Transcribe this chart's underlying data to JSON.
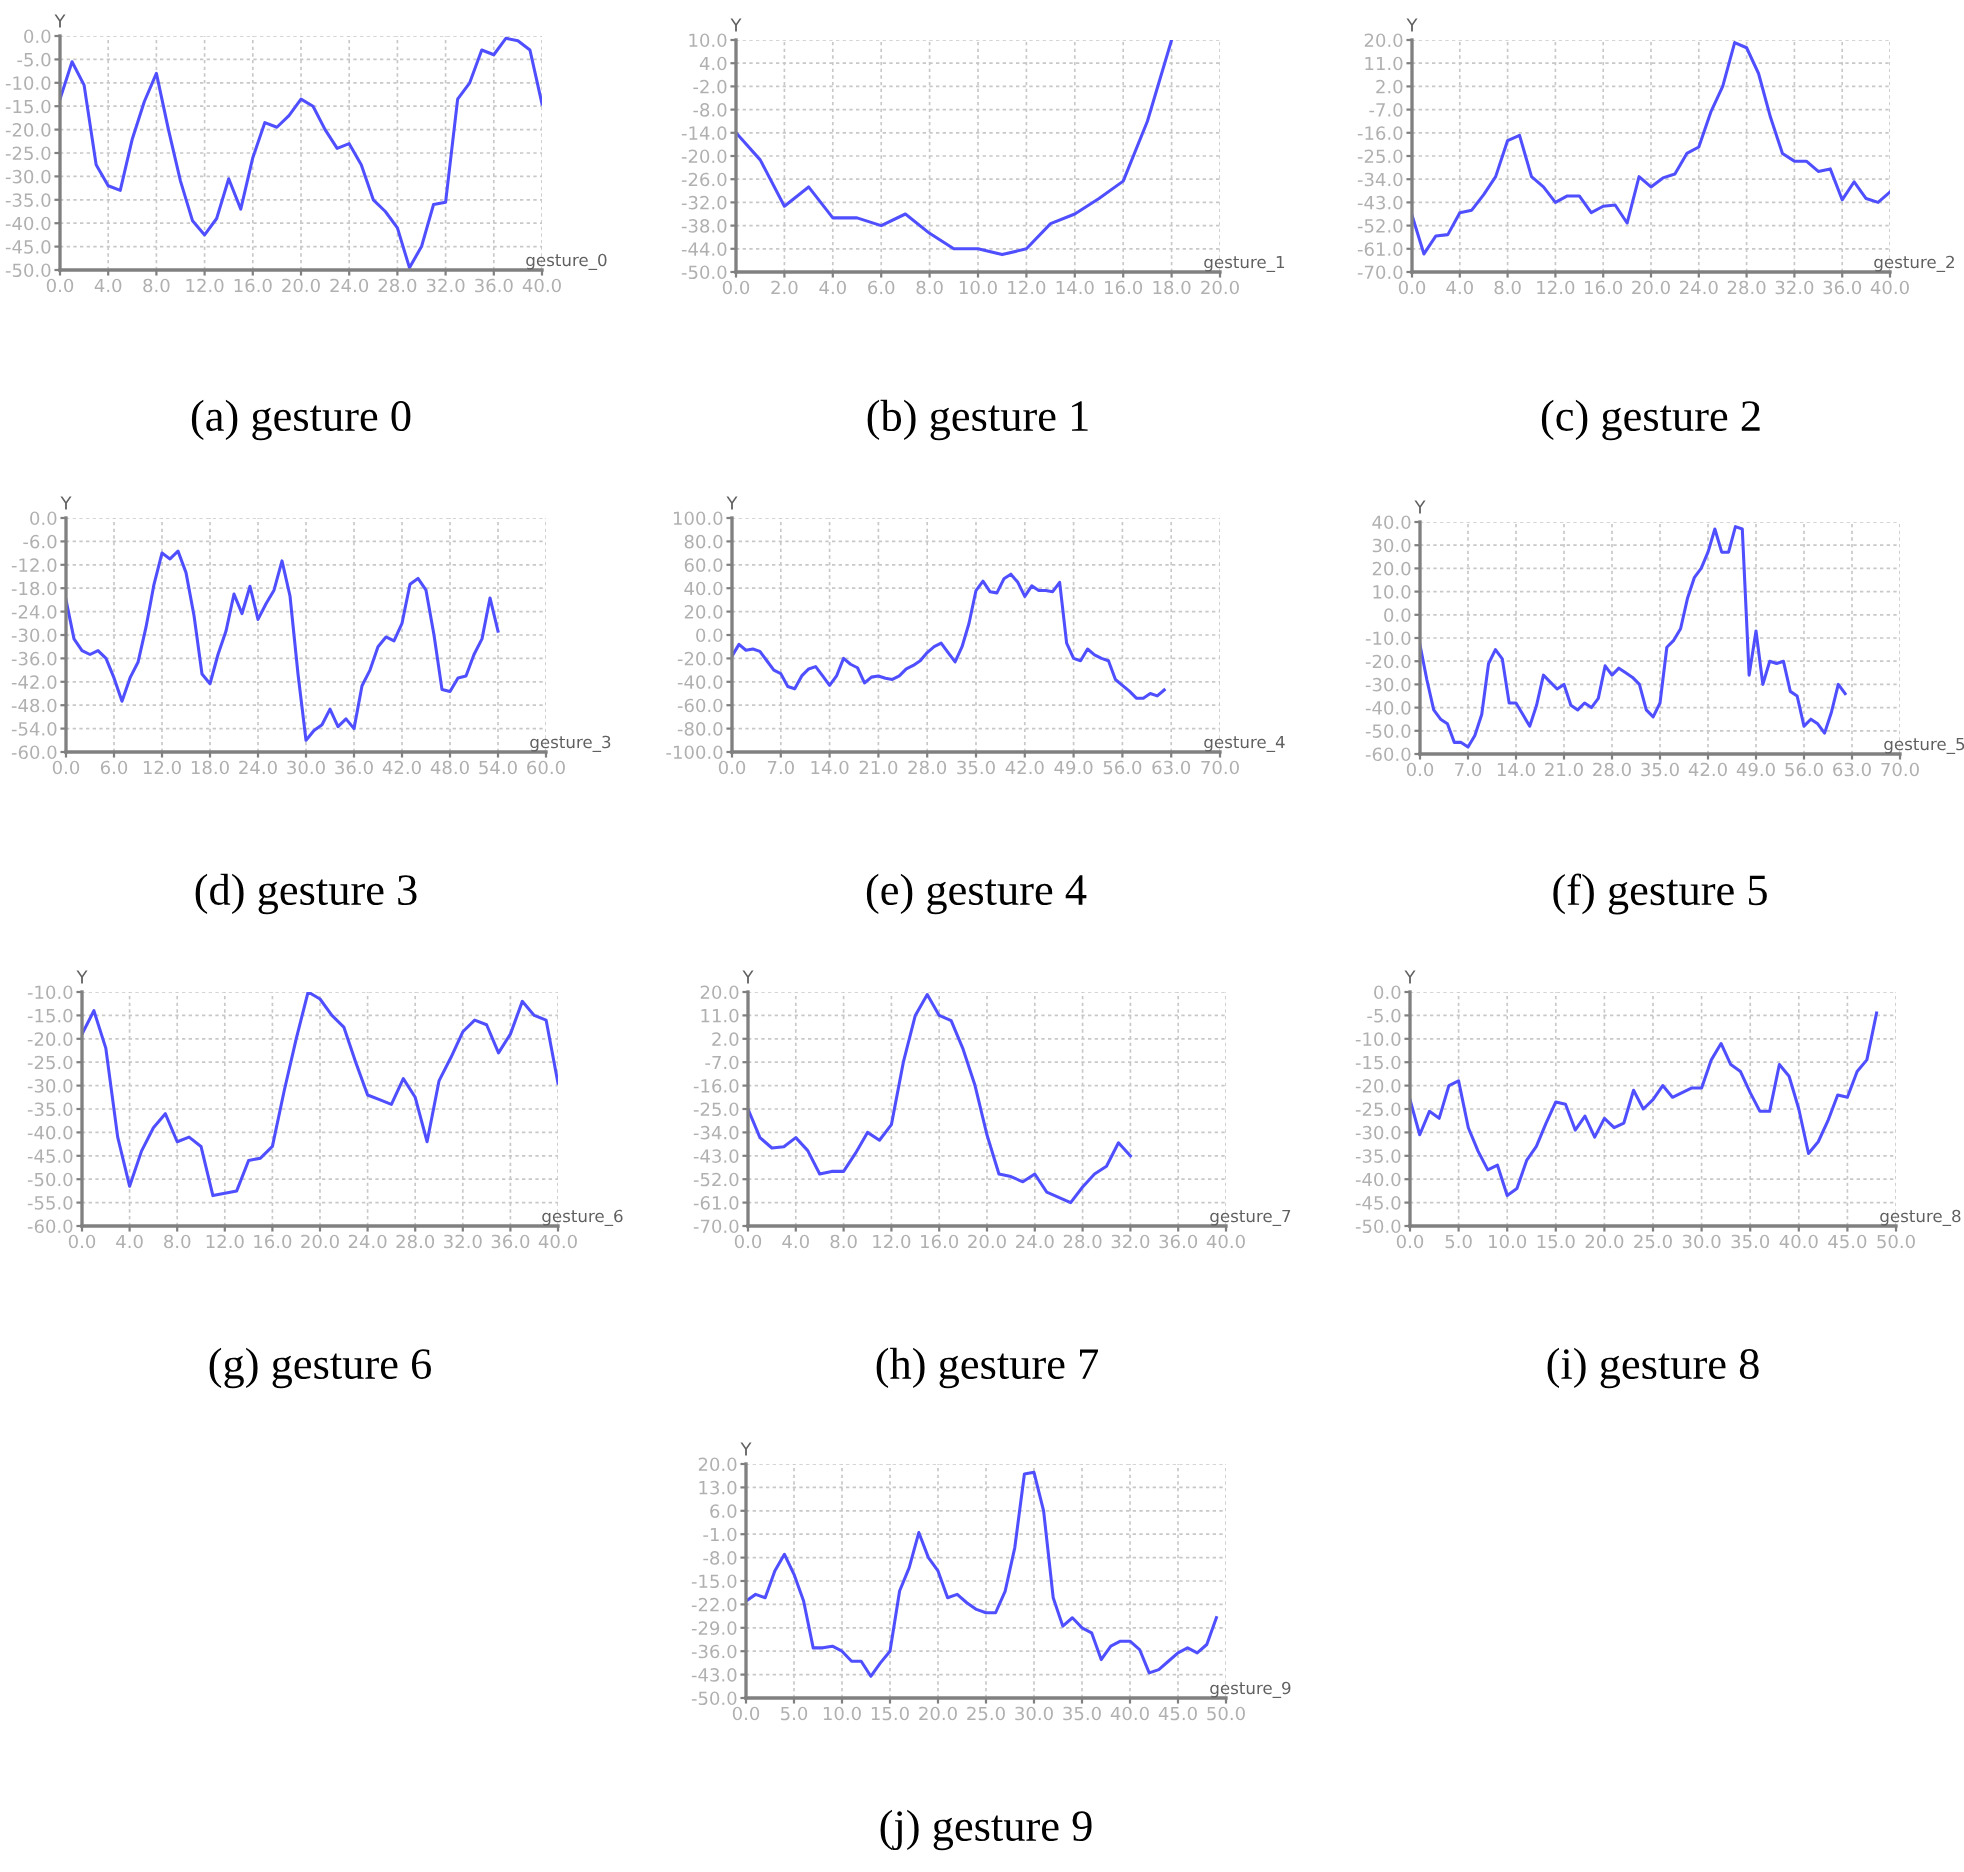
{
  "chart_data": [
    {
      "type": "line",
      "title": "(a) gesture 0",
      "xlabel": "gesture_0",
      "ylabel": "Y",
      "grid": true,
      "xlim": [
        0,
        40
      ],
      "ylim": [
        -50,
        0
      ],
      "xticks": [
        {
          "value": 0,
          "label": "0.0"
        },
        {
          "value": 4,
          "label": "4.0"
        },
        {
          "value": 8,
          "label": "8.0"
        },
        {
          "value": 12,
          "label": "12.0"
        },
        {
          "value": 16,
          "label": "16.0"
        },
        {
          "value": 20,
          "label": "20.0"
        },
        {
          "value": 24,
          "label": "24.0"
        },
        {
          "value": 28,
          "label": "28.0"
        },
        {
          "value": 32,
          "label": "32.0"
        },
        {
          "value": 36,
          "label": "36.0"
        },
        {
          "value": 40,
          "label": "40.0"
        }
      ],
      "yticks": [
        {
          "value": -50,
          "label": "-50.0"
        },
        {
          "value": -45,
          "label": "-45.0"
        },
        {
          "value": -40,
          "label": "-40.0"
        },
        {
          "value": -35,
          "label": "-35.0"
        },
        {
          "value": -30,
          "label": "-30.0"
        },
        {
          "value": -25,
          "label": "-25.0"
        },
        {
          "value": -20,
          "label": "-20.0"
        },
        {
          "value": -15,
          "label": "-15.0"
        },
        {
          "value": -10,
          "label": "-10.0"
        },
        {
          "value": -5,
          "label": "-5.0"
        },
        {
          "value": 0,
          "label": "0.0"
        }
      ],
      "series": [
        {
          "color": "#4f4fff",
          "x": [
            0,
            1,
            2,
            3,
            4,
            5,
            6,
            7,
            8,
            9,
            10,
            11,
            12,
            13,
            14,
            15,
            16,
            17,
            18,
            19,
            20,
            21,
            22,
            23,
            24,
            25,
            26,
            27,
            28,
            29,
            30,
            31,
            32,
            33,
            34,
            35,
            36,
            37,
            38,
            39,
            40
          ],
          "values": [
            -13.5,
            -5.5,
            -10.5,
            -27.5,
            -32,
            -33,
            -22,
            -14,
            -8,
            -20,
            -31,
            -39.5,
            -42.5,
            -39,
            -30.5,
            -37,
            -26,
            -18.5,
            -19.5,
            -17,
            -13.5,
            -15,
            -20,
            -24,
            -23,
            -27.5,
            -35,
            -37.5,
            -41,
            -49.5,
            -45,
            -36,
            -35.5,
            -13.5,
            -10,
            -3,
            -4,
            -0.5,
            -1,
            -3,
            -14.5
          ]
        }
      ]
    },
    {
      "type": "line",
      "title": "(b) gesture 1",
      "xlabel": "gesture_1",
      "ylabel": "Y",
      "grid": true,
      "xlim": [
        0,
        20
      ],
      "ylim": [
        -50,
        10
      ],
      "xticks": [
        {
          "value": 0,
          "label": "0.0"
        },
        {
          "value": 2,
          "label": "2.0"
        },
        {
          "value": 4,
          "label": "4.0"
        },
        {
          "value": 6,
          "label": "6.0"
        },
        {
          "value": 8,
          "label": "8.0"
        },
        {
          "value": 10,
          "label": "10.0"
        },
        {
          "value": 12,
          "label": "12.0"
        },
        {
          "value": 14,
          "label": "14.0"
        },
        {
          "value": 16,
          "label": "16.0"
        },
        {
          "value": 18,
          "label": "18.0"
        },
        {
          "value": 20,
          "label": "20.0"
        }
      ],
      "yticks": [
        {
          "value": -50,
          "label": "-50.0"
        },
        {
          "value": -44,
          "label": "-44.0"
        },
        {
          "value": -38,
          "label": "-38.0"
        },
        {
          "value": -32,
          "label": "-32.0"
        },
        {
          "value": -26,
          "label": "-26.0"
        },
        {
          "value": -20,
          "label": "-20.0"
        },
        {
          "value": -14,
          "label": "-14.0"
        },
        {
          "value": -8,
          "label": "-8.0"
        },
        {
          "value": -2,
          "label": "-2.0"
        },
        {
          "value": 4,
          "label": "4.0"
        },
        {
          "value": 10,
          "label": "10.0"
        }
      ],
      "series": [
        {
          "color": "#4f4fff",
          "x": [
            0,
            1,
            2,
            3,
            4,
            5,
            6,
            7,
            8,
            9,
            10,
            11,
            12,
            13,
            14,
            15,
            16,
            17,
            18
          ],
          "values": [
            -14,
            -21,
            -33,
            -28,
            -36,
            -36,
            -38,
            -35,
            -40,
            -44,
            -44,
            -45.5,
            -44,
            -37.5,
            -35,
            -31,
            -26.5,
            -11,
            10
          ]
        }
      ]
    },
    {
      "type": "line",
      "title": "(c) gesture 2",
      "xlabel": "gesture_2",
      "ylabel": "Y",
      "grid": true,
      "xlim": [
        0,
        40
      ],
      "ylim": [
        -70,
        20
      ],
      "xticks": [
        {
          "value": 0,
          "label": "0.0"
        },
        {
          "value": 4,
          "label": "4.0"
        },
        {
          "value": 8,
          "label": "8.0"
        },
        {
          "value": 12,
          "label": "12.0"
        },
        {
          "value": 16,
          "label": "16.0"
        },
        {
          "value": 20,
          "label": "20.0"
        },
        {
          "value": 24,
          "label": "24.0"
        },
        {
          "value": 28,
          "label": "28.0"
        },
        {
          "value": 32,
          "label": "32.0"
        },
        {
          "value": 36,
          "label": "36.0"
        },
        {
          "value": 40,
          "label": "40.0"
        }
      ],
      "yticks": [
        {
          "value": -70,
          "label": "-70.0"
        },
        {
          "value": -61,
          "label": "-61.0"
        },
        {
          "value": -52,
          "label": "-52.0"
        },
        {
          "value": -43,
          "label": "-43.0"
        },
        {
          "value": -34,
          "label": "-34.0"
        },
        {
          "value": -25,
          "label": "-25.0"
        },
        {
          "value": -16,
          "label": "-16.0"
        },
        {
          "value": -7,
          "label": "-7.0"
        },
        {
          "value": 2,
          "label": "2.0"
        },
        {
          "value": 11,
          "label": "11.0"
        },
        {
          "value": 20,
          "label": "20.0"
        }
      ],
      "series": [
        {
          "color": "#4f4fff",
          "x": [
            0,
            1,
            2,
            3,
            4,
            5,
            6,
            7,
            8,
            9,
            10,
            11,
            12,
            13,
            14,
            15,
            16,
            17,
            18,
            19,
            20,
            21,
            22,
            23,
            24,
            25,
            26,
            27,
            28,
            29,
            30,
            31,
            32,
            33,
            34,
            35,
            36,
            37,
            38,
            39,
            40
          ],
          "values": [
            -48,
            -63,
            -56,
            -55.5,
            -47,
            -46,
            -40,
            -33,
            -19,
            -17,
            -33,
            -37,
            -43,
            -40.5,
            -40.5,
            -47,
            -44.5,
            -44,
            -51,
            -33,
            -37,
            -33.5,
            -32,
            -24,
            -21.5,
            -8,
            2,
            19,
            17,
            7,
            -10,
            -24,
            -27,
            -27,
            -31,
            -30,
            -42,
            -35,
            -41.5,
            -43,
            -39
          ]
        }
      ]
    },
    {
      "type": "line",
      "title": "(d) gesture 3",
      "xlabel": "gesture_3",
      "ylabel": "Y",
      "grid": true,
      "xlim": [
        0,
        60
      ],
      "ylim": [
        -60,
        0
      ],
      "xticks": [
        {
          "value": 0,
          "label": "0.0"
        },
        {
          "value": 6,
          "label": "6.0"
        },
        {
          "value": 12,
          "label": "12.0"
        },
        {
          "value": 18,
          "label": "18.0"
        },
        {
          "value": 24,
          "label": "24.0"
        },
        {
          "value": 30,
          "label": "30.0"
        },
        {
          "value": 36,
          "label": "36.0"
        },
        {
          "value": 42,
          "label": "42.0"
        },
        {
          "value": 48,
          "label": "48.0"
        },
        {
          "value": 54,
          "label": "54.0"
        },
        {
          "value": 60,
          "label": "60.0"
        }
      ],
      "yticks": [
        {
          "value": -60,
          "label": "-60.0"
        },
        {
          "value": -54,
          "label": "-54.0"
        },
        {
          "value": -48,
          "label": "-48.0"
        },
        {
          "value": -42,
          "label": "-42.0"
        },
        {
          "value": -36,
          "label": "-36.0"
        },
        {
          "value": -30,
          "label": "-30.0"
        },
        {
          "value": -24,
          "label": "-24.0"
        },
        {
          "value": -18,
          "label": "-18.0"
        },
        {
          "value": -12,
          "label": "-12.0"
        },
        {
          "value": -6,
          "label": "-6.0"
        },
        {
          "value": 0,
          "label": "0.0"
        }
      ],
      "series": [
        {
          "color": "#4f4fff",
          "x": [
            0,
            1,
            2,
            3,
            4,
            5,
            6,
            7,
            8,
            9,
            10,
            11,
            12,
            13,
            14,
            15,
            16,
            17,
            18,
            19,
            20,
            21,
            22,
            23,
            24,
            25,
            26,
            27,
            28,
            29,
            30,
            31,
            32,
            33,
            34,
            35,
            36,
            37,
            38,
            39,
            40,
            41,
            42,
            43,
            44,
            45,
            46,
            47,
            48,
            49,
            50,
            51,
            52,
            53,
            54
          ],
          "values": [
            -21,
            -31,
            -34,
            -35,
            -34,
            -36,
            -41,
            -47,
            -41,
            -37,
            -28,
            -17,
            -9,
            -10.5,
            -8.5,
            -14,
            -25,
            -40,
            -42.5,
            -35,
            -29,
            -19.5,
            -24.5,
            -17.5,
            -26,
            -22,
            -18.5,
            -11,
            -20,
            -40,
            -57,
            -54.5,
            -53,
            -49,
            -53.5,
            -51.5,
            -54,
            -43,
            -39,
            -33,
            -30.5,
            -31.5,
            -27,
            -17,
            -15.5,
            -18.5,
            -30,
            -44,
            -44.5,
            -41,
            -40.5,
            -35,
            -31,
            -20.5,
            -29
          ]
        }
      ]
    },
    {
      "type": "line",
      "title": "(e) gesture 4",
      "xlabel": "gesture_4",
      "ylabel": "Y",
      "grid": true,
      "xlim": [
        0,
        70
      ],
      "ylim": [
        -100,
        100
      ],
      "xticks": [
        {
          "value": 0,
          "label": "0.0"
        },
        {
          "value": 7,
          "label": "7.0"
        },
        {
          "value": 14,
          "label": "14.0"
        },
        {
          "value": 21,
          "label": "21.0"
        },
        {
          "value": 28,
          "label": "28.0"
        },
        {
          "value": 35,
          "label": "35.0"
        },
        {
          "value": 42,
          "label": "42.0"
        },
        {
          "value": 49,
          "label": "49.0"
        },
        {
          "value": 56,
          "label": "56.0"
        },
        {
          "value": 63,
          "label": "63.0"
        },
        {
          "value": 70,
          "label": "70.0"
        }
      ],
      "yticks": [
        {
          "value": -100,
          "label": "-100.0"
        },
        {
          "value": -80,
          "label": "-80.0"
        },
        {
          "value": -60,
          "label": "-60.0"
        },
        {
          "value": -40,
          "label": "-40.0"
        },
        {
          "value": -20,
          "label": "-20.0"
        },
        {
          "value": 0,
          "label": "0.0"
        },
        {
          "value": 20,
          "label": "20.0"
        },
        {
          "value": 40,
          "label": "40.0"
        },
        {
          "value": 60,
          "label": "60.0"
        },
        {
          "value": 80,
          "label": "80.0"
        },
        {
          "value": 100,
          "label": "100.0"
        }
      ],
      "series": [
        {
          "color": "#4f4fff",
          "x": [
            0,
            1,
            2,
            3,
            4,
            5,
            6,
            7,
            8,
            9,
            10,
            11,
            12,
            13,
            14,
            15,
            16,
            17,
            18,
            19,
            20,
            21,
            22,
            23,
            24,
            25,
            26,
            27,
            28,
            29,
            30,
            31,
            32,
            33,
            34,
            35,
            36,
            37,
            38,
            39,
            40,
            41,
            42,
            43,
            44,
            45,
            46,
            47,
            48,
            49,
            50,
            51,
            52,
            53,
            54,
            55,
            56,
            57,
            58,
            59,
            60,
            61,
            62
          ],
          "values": [
            -18,
            -8,
            -13,
            -12,
            -14,
            -22,
            -30,
            -33,
            -44,
            -46,
            -35,
            -29,
            -27,
            -35,
            -43,
            -35,
            -20,
            -25,
            -28,
            -41,
            -36,
            -35,
            -37,
            -38,
            -35,
            -29,
            -26,
            -22,
            -15,
            -10,
            -7,
            -15,
            -23,
            -10,
            10,
            38,
            46,
            37,
            36,
            48,
            52,
            45,
            33,
            42,
            38,
            38,
            37,
            45,
            -7,
            -20,
            -22,
            -12,
            -17,
            -20,
            -22,
            -38,
            -43,
            -48,
            -54,
            -54,
            -50,
            -52,
            -47
          ]
        }
      ]
    },
    {
      "type": "line",
      "title": "(f) gesture 5",
      "xlabel": "gesture_5",
      "ylabel": "Y",
      "grid": true,
      "xlim": [
        0,
        70
      ],
      "ylim": [
        -60,
        40
      ],
      "xticks": [
        {
          "value": 0,
          "label": "0.0"
        },
        {
          "value": 7,
          "label": "7.0"
        },
        {
          "value": 14,
          "label": "14.0"
        },
        {
          "value": 21,
          "label": "21.0"
        },
        {
          "value": 28,
          "label": "28.0"
        },
        {
          "value": 35,
          "label": "35.0"
        },
        {
          "value": 42,
          "label": "42.0"
        },
        {
          "value": 49,
          "label": "49.0"
        },
        {
          "value": 56,
          "label": "56.0"
        },
        {
          "value": 63,
          "label": "63.0"
        },
        {
          "value": 70,
          "label": "70.0"
        }
      ],
      "yticks": [
        {
          "value": -60,
          "label": "-60.0"
        },
        {
          "value": -50,
          "label": "-50.0"
        },
        {
          "value": -40,
          "label": "-40.0"
        },
        {
          "value": -30,
          "label": "-30.0"
        },
        {
          "value": -20,
          "label": "-20.0"
        },
        {
          "value": -10,
          "label": "-10.0"
        },
        {
          "value": 0,
          "label": "0.0"
        },
        {
          "value": 10,
          "label": "10.0"
        },
        {
          "value": 20,
          "label": "20.0"
        },
        {
          "value": 30,
          "label": "30.0"
        },
        {
          "value": 40,
          "label": "40.0"
        }
      ],
      "series": [
        {
          "color": "#4f4fff",
          "x": [
            0,
            1,
            2,
            3,
            4,
            5,
            6,
            7,
            8,
            9,
            10,
            11,
            12,
            13,
            14,
            15,
            16,
            17,
            18,
            19,
            20,
            21,
            22,
            23,
            24,
            25,
            26,
            27,
            28,
            29,
            30,
            31,
            32,
            33,
            34,
            35,
            36,
            37,
            38,
            39,
            40,
            41,
            42,
            43,
            44,
            45,
            46,
            47,
            48,
            49,
            50,
            51,
            52,
            53,
            54,
            55,
            56,
            57,
            58,
            59,
            60,
            61,
            62
          ],
          "values": [
            -13,
            -28,
            -41,
            -45,
            -47,
            -55,
            -55,
            -57,
            -52,
            -43,
            -21,
            -15,
            -19,
            -38,
            -38,
            -43,
            -48,
            -39,
            -26,
            -29,
            -32,
            -30,
            -39,
            -41,
            -38,
            -40,
            -36,
            -22,
            -26,
            -23,
            -25,
            -27,
            -30,
            -41,
            -44,
            -38,
            -14,
            -11,
            -6,
            7,
            16,
            20,
            27,
            37,
            27,
            27,
            38,
            37,
            -26,
            -7,
            -30,
            -20,
            -21,
            -20,
            -33,
            -35,
            -48,
            -45,
            -47,
            -51,
            -42,
            -30,
            -34
          ]
        }
      ]
    },
    {
      "type": "line",
      "title": "(g) gesture 6",
      "xlabel": "gesture_6",
      "ylabel": "Y",
      "grid": true,
      "xlim": [
        0,
        40
      ],
      "ylim": [
        -60,
        -10
      ],
      "xticks": [
        {
          "value": 0,
          "label": "0.0"
        },
        {
          "value": 4,
          "label": "4.0"
        },
        {
          "value": 8,
          "label": "8.0"
        },
        {
          "value": 12,
          "label": "12.0"
        },
        {
          "value": 16,
          "label": "16.0"
        },
        {
          "value": 20,
          "label": "20.0"
        },
        {
          "value": 24,
          "label": "24.0"
        },
        {
          "value": 28,
          "label": "28.0"
        },
        {
          "value": 32,
          "label": "32.0"
        },
        {
          "value": 36,
          "label": "36.0"
        },
        {
          "value": 40,
          "label": "40.0"
        }
      ],
      "yticks": [
        {
          "value": -60,
          "label": "-60.0"
        },
        {
          "value": -55,
          "label": "-55.0"
        },
        {
          "value": -50,
          "label": "-50.0"
        },
        {
          "value": -45,
          "label": "-45.0"
        },
        {
          "value": -40,
          "label": "-40.0"
        },
        {
          "value": -35,
          "label": "-35.0"
        },
        {
          "value": -30,
          "label": "-30.0"
        },
        {
          "value": -25,
          "label": "-25.0"
        },
        {
          "value": -20,
          "label": "-20.0"
        },
        {
          "value": -15,
          "label": "-15.0"
        },
        {
          "value": -10,
          "label": "-10.0"
        }
      ],
      "series": [
        {
          "color": "#4f4fff",
          "x": [
            0,
            1,
            2,
            3,
            4,
            5,
            6,
            7,
            8,
            9,
            10,
            11,
            12,
            13,
            14,
            15,
            16,
            17,
            18,
            19,
            20,
            21,
            22,
            23,
            24,
            25,
            26,
            27,
            28,
            29,
            30,
            31,
            32,
            33,
            34,
            35,
            36,
            37,
            38,
            39,
            40
          ],
          "values": [
            -19,
            -14,
            -22,
            -41,
            -51.5,
            -44,
            -39,
            -36,
            -42,
            -41,
            -43,
            -53.5,
            -53,
            -52.5,
            -46,
            -45.5,
            -43,
            -31,
            -20,
            -10,
            -11.5,
            -15,
            -17.5,
            -25,
            -32,
            -33,
            -34,
            -28.5,
            -32.5,
            -42,
            -29,
            -24,
            -18.5,
            -16,
            -17,
            -23,
            -19,
            -12,
            -15,
            -16,
            -29.5
          ]
        }
      ]
    },
    {
      "type": "line",
      "title": "(h) gesture 7",
      "xlabel": "gesture_7",
      "ylabel": "Y",
      "grid": true,
      "xlim": [
        0,
        40
      ],
      "ylim": [
        -70,
        20
      ],
      "xticks": [
        {
          "value": 0,
          "label": "0.0"
        },
        {
          "value": 4,
          "label": "4.0"
        },
        {
          "value": 8,
          "label": "8.0"
        },
        {
          "value": 12,
          "label": "12.0"
        },
        {
          "value": 16,
          "label": "16.0"
        },
        {
          "value": 20,
          "label": "20.0"
        },
        {
          "value": 24,
          "label": "24.0"
        },
        {
          "value": 28,
          "label": "28.0"
        },
        {
          "value": 32,
          "label": "32.0"
        },
        {
          "value": 36,
          "label": "36.0"
        },
        {
          "value": 40,
          "label": "40.0"
        }
      ],
      "yticks": [
        {
          "value": -70,
          "label": "-70.0"
        },
        {
          "value": -61,
          "label": "-61.0"
        },
        {
          "value": -52,
          "label": "-52.0"
        },
        {
          "value": -43,
          "label": "-43.0"
        },
        {
          "value": -34,
          "label": "-34.0"
        },
        {
          "value": -25,
          "label": "-25.0"
        },
        {
          "value": -16,
          "label": "-16.0"
        },
        {
          "value": -7,
          "label": "-7.0"
        },
        {
          "value": 2,
          "label": "2.0"
        },
        {
          "value": 11,
          "label": "11.0"
        },
        {
          "value": 20,
          "label": "20.0"
        }
      ],
      "series": [
        {
          "color": "#4f4fff",
          "x": [
            0,
            1,
            2,
            3,
            4,
            5,
            6,
            7,
            8,
            9,
            10,
            11,
            12,
            13,
            14,
            15,
            16,
            17,
            18,
            19,
            20,
            21,
            22,
            23,
            24,
            25,
            26,
            27,
            28,
            29,
            30,
            31,
            32
          ],
          "values": [
            -25,
            -36,
            -40,
            -39.5,
            -36,
            -41,
            -50,
            -49,
            -49,
            -42,
            -34,
            -37,
            -31,
            -7,
            11,
            19,
            11,
            9,
            -2,
            -16,
            -35,
            -50,
            -51,
            -53,
            -50,
            -57,
            -59,
            -61,
            -55,
            -50,
            -47,
            -38,
            -43
          ]
        }
      ]
    },
    {
      "type": "line",
      "title": "(i) gesture 8",
      "xlabel": "gesture_8",
      "ylabel": "Y",
      "grid": true,
      "xlim": [
        0,
        50
      ],
      "ylim": [
        -50,
        0
      ],
      "xticks": [
        {
          "value": 0,
          "label": "0.0"
        },
        {
          "value": 5,
          "label": "5.0"
        },
        {
          "value": 10,
          "label": "10.0"
        },
        {
          "value": 15,
          "label": "15.0"
        },
        {
          "value": 20,
          "label": "20.0"
        },
        {
          "value": 25,
          "label": "25.0"
        },
        {
          "value": 30,
          "label": "30.0"
        },
        {
          "value": 35,
          "label": "35.0"
        },
        {
          "value": 40,
          "label": "40.0"
        },
        {
          "value": 45,
          "label": "45.0"
        },
        {
          "value": 50,
          "label": "50.0"
        }
      ],
      "yticks": [
        {
          "value": -50,
          "label": "-50.0"
        },
        {
          "value": -45,
          "label": "-45.0"
        },
        {
          "value": -40,
          "label": "-40.0"
        },
        {
          "value": -35,
          "label": "-35.0"
        },
        {
          "value": -30,
          "label": "-30.0"
        },
        {
          "value": -25,
          "label": "-25.0"
        },
        {
          "value": -20,
          "label": "-20.0"
        },
        {
          "value": -15,
          "label": "-15.0"
        },
        {
          "value": -10,
          "label": "-10.0"
        },
        {
          "value": -5,
          "label": "-5.0"
        },
        {
          "value": 0,
          "label": "0.0"
        }
      ],
      "series": [
        {
          "color": "#4f4fff",
          "x": [
            0,
            1,
            2,
            3,
            4,
            5,
            6,
            7,
            8,
            9,
            10,
            11,
            12,
            13,
            14,
            15,
            16,
            17,
            18,
            19,
            20,
            21,
            22,
            23,
            24,
            25,
            26,
            27,
            28,
            29,
            30,
            31,
            32,
            33,
            34,
            35,
            36,
            37,
            38,
            39,
            40,
            41,
            42,
            43,
            44,
            45,
            46,
            47,
            48
          ],
          "values": [
            -23,
            -30.5,
            -25.5,
            -27,
            -20,
            -19,
            -29,
            -34,
            -38,
            -37,
            -43.5,
            -42,
            -36,
            -33,
            -28,
            -23.5,
            -24,
            -29.5,
            -26.5,
            -31,
            -27,
            -29,
            -28,
            -21,
            -25,
            -23,
            -20,
            -22.5,
            -21.5,
            -20.5,
            -20.5,
            -14.5,
            -11,
            -15.5,
            -17,
            -21.5,
            -25.5,
            -25.5,
            -15.5,
            -18,
            -25,
            -34.5,
            -32,
            -27.5,
            -22,
            -22.5,
            -17,
            -14.5,
            -4.5
          ]
        }
      ]
    },
    {
      "type": "line",
      "title": "(j) gesture 9",
      "xlabel": "gesture_9",
      "ylabel": "Y",
      "grid": true,
      "xlim": [
        0,
        50
      ],
      "ylim": [
        -50,
        20
      ],
      "xticks": [
        {
          "value": 0,
          "label": "0.0"
        },
        {
          "value": 5,
          "label": "5.0"
        },
        {
          "value": 10,
          "label": "10.0"
        },
        {
          "value": 15,
          "label": "15.0"
        },
        {
          "value": 20,
          "label": "20.0"
        },
        {
          "value": 25,
          "label": "25.0"
        },
        {
          "value": 30,
          "label": "30.0"
        },
        {
          "value": 35,
          "label": "35.0"
        },
        {
          "value": 40,
          "label": "40.0"
        },
        {
          "value": 45,
          "label": "45.0"
        },
        {
          "value": 50,
          "label": "50.0"
        }
      ],
      "yticks": [
        {
          "value": -50,
          "label": "-50.0"
        },
        {
          "value": -43,
          "label": "-43.0"
        },
        {
          "value": -36,
          "label": "-36.0"
        },
        {
          "value": -29,
          "label": "-29.0"
        },
        {
          "value": -22,
          "label": "-22.0"
        },
        {
          "value": -15,
          "label": "-15.0"
        },
        {
          "value": -8,
          "label": "-8.0"
        },
        {
          "value": -1,
          "label": "-1.0"
        },
        {
          "value": 6,
          "label": "6.0"
        },
        {
          "value": 13,
          "label": "13.0"
        },
        {
          "value": 20,
          "label": "20.0"
        }
      ],
      "series": [
        {
          "color": "#4f4fff",
          "x": [
            0,
            1,
            2,
            3,
            4,
            5,
            6,
            7,
            8,
            9,
            10,
            11,
            12,
            13,
            14,
            15,
            16,
            17,
            18,
            19,
            20,
            21,
            22,
            23,
            24,
            25,
            26,
            27,
            28,
            29,
            30,
            31,
            32,
            33,
            34,
            35,
            36,
            37,
            38,
            39,
            40,
            41,
            42,
            43,
            44,
            45,
            46,
            47,
            48,
            49
          ],
          "values": [
            -21,
            -19,
            -20,
            -12,
            -7,
            -13,
            -21,
            -35,
            -35,
            -34.5,
            -36,
            -39,
            -39,
            -43.5,
            -39.5,
            -36,
            -18,
            -11,
            -0.5,
            -8,
            -12,
            -20,
            -19,
            -21.5,
            -23.5,
            -24.5,
            -24.5,
            -18,
            -5,
            17,
            17.5,
            6,
            -20,
            -28.5,
            -26,
            -29,
            -30.5,
            -38.5,
            -34.5,
            -33,
            -33,
            -35.5,
            -42.5,
            -41.5,
            -39,
            -36.5,
            -35,
            -36.5,
            -34,
            -26
          ]
        }
      ]
    }
  ]
}
